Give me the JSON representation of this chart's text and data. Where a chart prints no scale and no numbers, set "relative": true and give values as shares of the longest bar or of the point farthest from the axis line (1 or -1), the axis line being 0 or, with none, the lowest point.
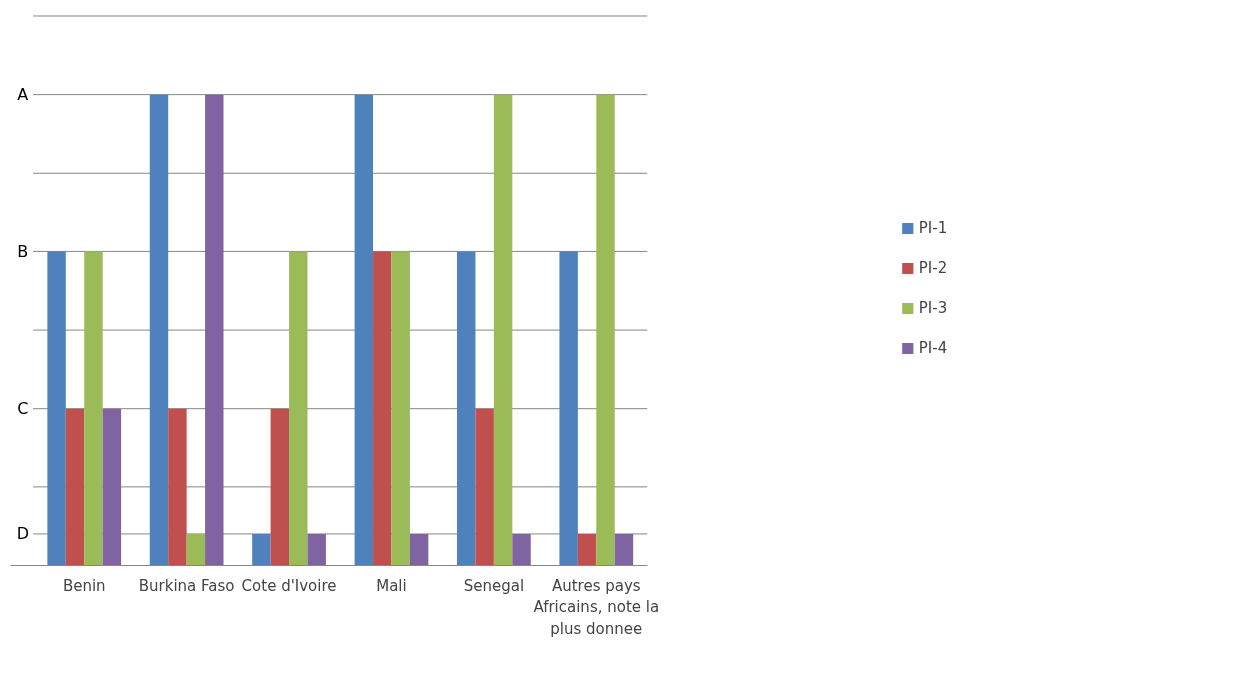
{
  "chart_data": {
    "type": "bar",
    "relative": true,
    "categories": [
      "Benin",
      "Burkina Faso",
      "Cote d'Ivoire",
      "Mali",
      "Senegal",
      "Autres pays Africains, note la plus donnee"
    ],
    "series": [
      {
        "name": "PI-1",
        "color": "#4f81bd",
        "values": [
          0.667,
          1,
          0.067,
          1,
          0.667,
          0.667
        ]
      },
      {
        "name": "PI-2",
        "color": "#c0504d",
        "values": [
          0.333,
          0.333,
          0.333,
          0.667,
          0.333,
          0.067
        ]
      },
      {
        "name": "PI-3",
        "color": "#9bbb59",
        "values": [
          0.667,
          0.067,
          0.667,
          0.667,
          1,
          1
        ]
      },
      {
        "name": "PI-4",
        "color": "#8064a2",
        "values": [
          0.333,
          1,
          0.067,
          0.067,
          0.067,
          0.067
        ]
      }
    ],
    "ref_lines": [
      {
        "axis": "y",
        "value": 0.067,
        "label": "D",
        "color": "#868686"
      },
      {
        "axis": "y",
        "value": 0.167,
        "label": null,
        "color": "#868686"
      },
      {
        "axis": "y",
        "value": 0.333,
        "label": "C",
        "color": "#868686"
      },
      {
        "axis": "y",
        "value": 0.5,
        "label": null,
        "color": "#868686"
      },
      {
        "axis": "y",
        "value": 0.667,
        "label": "B",
        "color": "#868686"
      },
      {
        "axis": "y",
        "value": 0.833,
        "label": null,
        "color": "#868686"
      },
      {
        "axis": "y",
        "value": 1,
        "label": "A",
        "color": "#868686"
      },
      {
        "axis": "y",
        "value": 1.167,
        "label": null,
        "color": "#868686"
      }
    ],
    "legend": "right"
  }
}
